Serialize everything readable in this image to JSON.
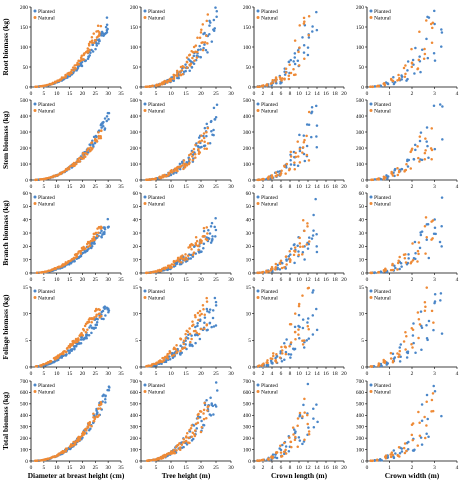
{
  "colors": {
    "planted": "#4a86c8",
    "natural": "#ee8a36"
  },
  "chart_data": {
    "type": "scatter",
    "legend_placement": "top-left",
    "legend": [
      "Planted",
      "Natural"
    ],
    "rows": [
      {
        "ylabel": "Root biomass (kg)",
        "ylim": [
          0,
          200
        ],
        "yticks": [
          0,
          50,
          100,
          150,
          200
        ]
      },
      {
        "ylabel": "Stem biomass (kg)",
        "ylim": [
          0,
          500
        ],
        "yticks": [
          0,
          100,
          200,
          300,
          400,
          500
        ]
      },
      {
        "ylabel": "Branch biomass (kg)",
        "ylim": [
          0,
          60
        ],
        "yticks": [
          0,
          10,
          20,
          30,
          40,
          50,
          60
        ]
      },
      {
        "ylabel": "Foliage biomass (kg)",
        "ylim": [
          0,
          15
        ],
        "yticks": [
          0,
          5,
          10,
          15
        ]
      },
      {
        "ylabel": "Total biomass (kg)",
        "ylim": [
          0,
          700
        ],
        "yticks": [
          0,
          100,
          200,
          300,
          400,
          500,
          600,
          700
        ]
      }
    ],
    "columns": [
      {
        "xlabel": "Diameter at breast height (cm)",
        "xlim": [
          0,
          35
        ],
        "xticks": [
          0,
          5,
          10,
          15,
          20,
          25,
          30,
          35
        ]
      },
      {
        "xlabel": "Tree height (m)",
        "xlim": [
          0,
          30
        ],
        "xticks": [
          0,
          5,
          10,
          15,
          20,
          25,
          30
        ]
      },
      {
        "xlabel": "Crown length (m)",
        "xlim": [
          0,
          20
        ],
        "xticks": [
          0,
          2,
          4,
          6,
          8,
          10,
          12,
          14,
          16,
          18,
          20
        ]
      },
      {
        "xlabel": "Crown width (m)",
        "xlim": [
          0,
          4
        ],
        "xticks": [
          0,
          1,
          2,
          3,
          4
        ]
      }
    ],
    "series": [
      {
        "name": "Planted",
        "predictor": {
          "Diameter at breast height (cm)": [
            3,
            5,
            6,
            7,
            8,
            9,
            10,
            11,
            12,
            13,
            14,
            15,
            16,
            17,
            18,
            19,
            20,
            21,
            22,
            23,
            24,
            25,
            26,
            27,
            28,
            29,
            30
          ],
          "Tree height (m)": [
            3,
            4,
            5,
            6,
            7,
            8,
            9,
            10,
            11,
            12,
            13,
            14,
            15,
            16,
            17,
            18,
            19,
            20,
            21,
            22,
            23,
            24,
            25
          ],
          "Crown length (m)": [
            1,
            2,
            3,
            4,
            5,
            6,
            7,
            8,
            9,
            10,
            11,
            12,
            13,
            14
          ],
          "Crown width (m)": [
            0.3,
            0.6,
            0.9,
            1.2,
            1.5,
            1.8,
            2.1,
            2.4,
            2.7,
            3.0,
            3.3
          ]
        },
        "response_vs_dbh": {
          "Root biomass (kg)": [
            1,
            2,
            3,
            5,
            7,
            9,
            12,
            15,
            18,
            22,
            26,
            30,
            35,
            40,
            46,
            53,
            60,
            68,
            76,
            85,
            95,
            105,
            116,
            127,
            139,
            150,
            160
          ],
          "Stem biomass (kg)": [
            2,
            5,
            8,
            12,
            17,
            22,
            29,
            36,
            44,
            53,
            63,
            74,
            86,
            100,
            115,
            130,
            148,
            166,
            186,
            207,
            230,
            255,
            280,
            308,
            336,
            365,
            395
          ],
          "Branch biomass (kg)": [
            0.2,
            0.5,
            0.8,
            1.2,
            1.7,
            2.2,
            2.9,
            3.6,
            4.4,
            5.3,
            6.3,
            7.4,
            8.6,
            9.9,
            11.3,
            12.8,
            14.4,
            16.1,
            18,
            20,
            22,
            24,
            26.5,
            29,
            31.5,
            34,
            37
          ],
          "Foliage biomass (kg)": [
            0.1,
            0.3,
            0.4,
            0.6,
            0.8,
            1.0,
            1.3,
            1.6,
            1.9,
            2.2,
            2.6,
            3.0,
            3.4,
            3.8,
            4.3,
            4.8,
            5.3,
            5.8,
            6.3,
            6.9,
            7.5,
            8.1,
            8.7,
            9.3,
            9.9,
            10.5,
            11
          ],
          "Total biomass (kg)": [
            3,
            8,
            12,
            19,
            27,
            35,
            46,
            57,
            69,
            83,
            98,
            114,
            133,
            154,
            176,
            199,
            226,
            254,
            284,
            317,
            352,
            390,
            429,
            470,
            514,
            560,
            600
          ]
        }
      },
      {
        "name": "Natural",
        "predictor": {
          "Diameter at breast height (cm)": [
            2,
            4,
            5,
            6,
            7,
            8,
            9,
            10,
            11,
            12,
            13,
            14,
            15,
            16,
            17,
            18,
            19,
            20,
            21,
            22,
            23,
            24,
            25,
            26,
            27
          ],
          "Tree height (m)": [
            2,
            3,
            4,
            5,
            6,
            7,
            8,
            9,
            10,
            11,
            12,
            13,
            14,
            15,
            16,
            17,
            18,
            19,
            20,
            21,
            22
          ],
          "Crown length (m)": [
            1,
            2,
            3,
            4,
            5,
            6,
            7,
            8,
            9,
            10,
            11,
            12
          ],
          "Crown width (m)": [
            0.2,
            0.5,
            0.8,
            1.1,
            1.4,
            1.7,
            2.0,
            2.3,
            2.6,
            2.9
          ]
        },
        "response_vs_dbh": {
          "Root biomass (kg)": [
            0.5,
            2,
            3,
            4,
            6,
            8,
            11,
            14,
            17,
            21,
            25,
            30,
            35,
            41,
            48,
            55,
            63,
            72,
            82,
            93,
            104,
            116,
            128,
            140,
            150
          ],
          "Stem biomass (kg)": [
            1,
            4,
            6,
            9,
            13,
            18,
            24,
            30,
            37,
            45,
            54,
            64,
            75,
            87,
            100,
            114,
            129,
            145,
            162,
            180,
            199,
            219,
            240,
            262,
            285
          ],
          "Branch biomass (kg)": [
            0.1,
            0.4,
            0.7,
            1.1,
            1.6,
            2.2,
            2.9,
            3.7,
            4.6,
            5.6,
            6.7,
            7.9,
            9.2,
            10.6,
            12.1,
            13.7,
            15.4,
            17.2,
            19.1,
            21.1,
            23.2,
            25.4,
            27.7,
            30,
            32
          ],
          "Foliage biomass (kg)": [
            0.1,
            0.3,
            0.5,
            0.7,
            0.9,
            1.2,
            1.5,
            1.8,
            2.1,
            2.5,
            2.9,
            3.3,
            3.8,
            4.3,
            4.8,
            5.3,
            5.9,
            6.5,
            7.1,
            7.7,
            8.3,
            8.9,
            9.5,
            10.1,
            10.6
          ],
          "Total biomass (kg)": [
            2,
            6,
            10,
            15,
            21,
            29,
            38,
            48,
            59,
            72,
            86,
            102,
            119,
            138,
            159,
            182,
            207,
            234,
            263,
            294,
            326,
            360,
            396,
            432,
            467
          ]
        }
      }
    ]
  }
}
